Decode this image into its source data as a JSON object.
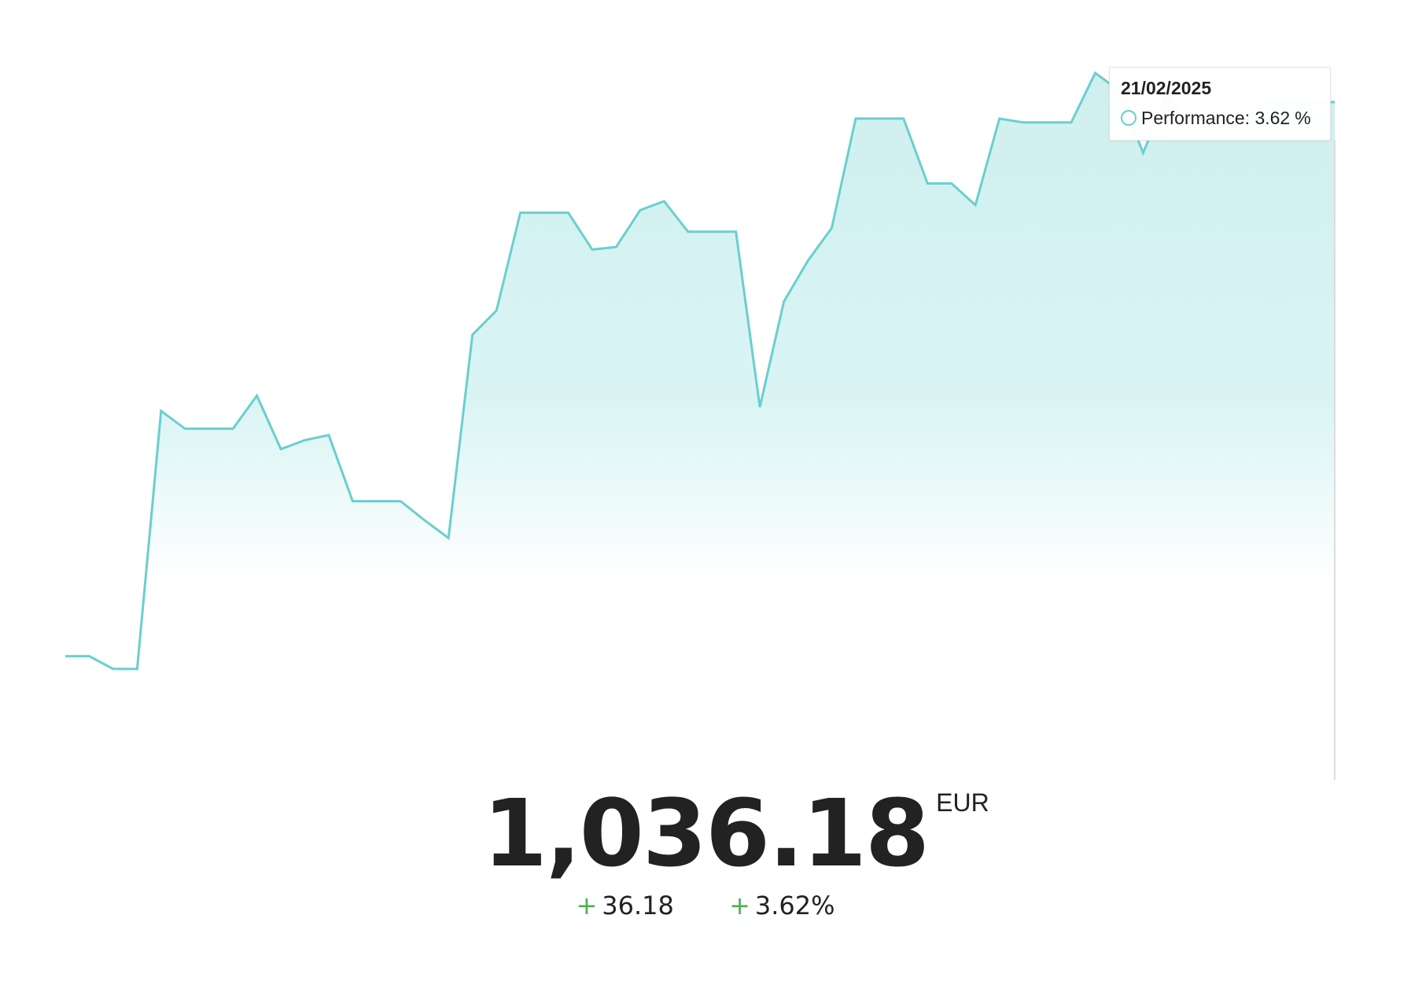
{
  "chart_data": {
    "type": "area",
    "series": [
      {
        "name": "Performance",
        "values": [
          -0.74,
          -0.74,
          -0.84,
          -0.84,
          1.19,
          1.05,
          1.05,
          1.05,
          1.31,
          0.89,
          0.96,
          1.0,
          0.48,
          0.48,
          0.48,
          0.33,
          0.19,
          1.79,
          1.98,
          2.75,
          2.75,
          2.75,
          2.46,
          2.48,
          2.77,
          2.84,
          2.6,
          2.6,
          2.6,
          1.22,
          2.05,
          2.37,
          2.63,
          3.49,
          3.49,
          3.49,
          2.98,
          2.98,
          2.81,
          3.49,
          3.46,
          3.46,
          3.46,
          3.85,
          3.71,
          3.22,
          3.68,
          3.42,
          3.42,
          3.42,
          3.62,
          3.62,
          3.62,
          3.62
        ]
      }
    ],
    "ylim": [
      -1.7,
      4.3
    ],
    "color": "#6acfcd",
    "fill_color": "#d2f1f1",
    "hover_index": 53,
    "grid": false
  },
  "tooltip": {
    "date": "21/02/2025",
    "label": "Performance: 3.62",
    "unit": "%"
  },
  "value": {
    "amount": "1,036.18",
    "currency": "EUR"
  },
  "change": {
    "absolute_sign": "+",
    "absolute": "36.18",
    "percent_sign": "+",
    "percent": "3.62%"
  }
}
